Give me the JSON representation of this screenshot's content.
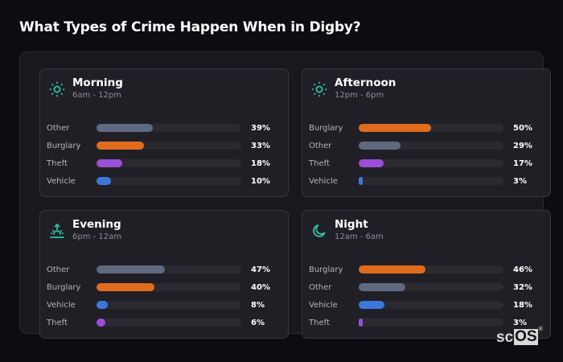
{
  "page": {
    "title": "What Types of Crime Happen When in Digby?"
  },
  "colors": {
    "Other": "#5f6a80",
    "Burglary": "#e06c1e",
    "Theft": "#9a4fd6",
    "Vehicle": "#3b78dc",
    "accent_icon": "#2ec4a0"
  },
  "cards": [
    {
      "name": "Morning",
      "range": "6am - 12pm",
      "icon": "sun-icon",
      "rows": [
        {
          "label": "Other",
          "value": 39,
          "pct": "39%"
        },
        {
          "label": "Burglary",
          "value": 33,
          "pct": "33%"
        },
        {
          "label": "Theft",
          "value": 18,
          "pct": "18%"
        },
        {
          "label": "Vehicle",
          "value": 10,
          "pct": "10%"
        }
      ]
    },
    {
      "name": "Afternoon",
      "range": "12pm - 6pm",
      "icon": "sun-icon",
      "rows": [
        {
          "label": "Burglary",
          "value": 50,
          "pct": "50%"
        },
        {
          "label": "Other",
          "value": 29,
          "pct": "29%"
        },
        {
          "label": "Theft",
          "value": 17,
          "pct": "17%"
        },
        {
          "label": "Vehicle",
          "value": 3,
          "pct": "3%"
        }
      ]
    },
    {
      "name": "Evening",
      "range": "6pm - 12am",
      "icon": "sunset-icon",
      "rows": [
        {
          "label": "Other",
          "value": 47,
          "pct": "47%"
        },
        {
          "label": "Burglary",
          "value": 40,
          "pct": "40%"
        },
        {
          "label": "Vehicle",
          "value": 8,
          "pct": "8%"
        },
        {
          "label": "Theft",
          "value": 6,
          "pct": "6%"
        }
      ]
    },
    {
      "name": "Night",
      "range": "12am - 6am",
      "icon": "moon-icon",
      "rows": [
        {
          "label": "Burglary",
          "value": 46,
          "pct": "46%"
        },
        {
          "label": "Other",
          "value": 32,
          "pct": "32%"
        },
        {
          "label": "Vehicle",
          "value": 18,
          "pct": "18%"
        },
        {
          "label": "Theft",
          "value": 3,
          "pct": "3%"
        }
      ]
    }
  ],
  "logo": {
    "sc": "sc",
    "os": "OS",
    "reg": "®"
  },
  "chart_data": [
    {
      "type": "bar",
      "orientation": "horizontal",
      "title": "Morning",
      "subtitle": "6am - 12pm",
      "categories": [
        "Other",
        "Burglary",
        "Theft",
        "Vehicle"
      ],
      "values": [
        39,
        33,
        18,
        10
      ],
      "unit": "%",
      "xlim": [
        0,
        100
      ],
      "grid": false
    },
    {
      "type": "bar",
      "orientation": "horizontal",
      "title": "Afternoon",
      "subtitle": "12pm - 6pm",
      "categories": [
        "Burglary",
        "Other",
        "Theft",
        "Vehicle"
      ],
      "values": [
        50,
        29,
        17,
        3
      ],
      "unit": "%",
      "xlim": [
        0,
        100
      ],
      "grid": false
    },
    {
      "type": "bar",
      "orientation": "horizontal",
      "title": "Evening",
      "subtitle": "6pm - 12am",
      "categories": [
        "Other",
        "Burglary",
        "Vehicle",
        "Theft"
      ],
      "values": [
        47,
        40,
        8,
        6
      ],
      "unit": "%",
      "xlim": [
        0,
        100
      ],
      "grid": false
    },
    {
      "type": "bar",
      "orientation": "horizontal",
      "title": "Night",
      "subtitle": "12am - 6am",
      "categories": [
        "Burglary",
        "Other",
        "Vehicle",
        "Theft"
      ],
      "values": [
        46,
        32,
        18,
        3
      ],
      "unit": "%",
      "xlim": [
        0,
        100
      ],
      "grid": false
    }
  ]
}
